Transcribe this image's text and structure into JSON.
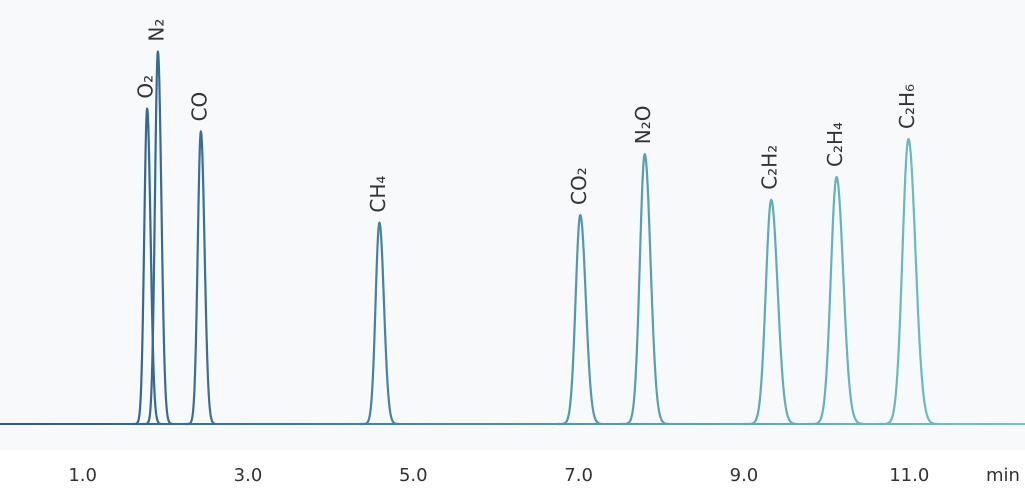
{
  "chart_data": {
    "type": "chromatogram",
    "x_label": "min",
    "xlim": [
      0,
      12.4
    ],
    "ylim": [
      0,
      100
    ],
    "xticks": [
      {
        "value": 1,
        "label": "1.0"
      },
      {
        "value": 3,
        "label": "3.0"
      },
      {
        "value": 5,
        "label": "5.0"
      },
      {
        "value": 7,
        "label": "7.0"
      },
      {
        "value": 9,
        "label": "9.0"
      },
      {
        "value": 11,
        "label": "11.0"
      }
    ],
    "colors": [
      "#2b5a8a",
      "#6fc6cc"
    ],
    "peaks": [
      {
        "label": "O₂",
        "x": 1.78,
        "height": 83
      },
      {
        "label": "N₂",
        "x": 1.91,
        "height": 98
      },
      {
        "label": "CO",
        "x": 2.43,
        "height": 77
      },
      {
        "label": "CH₄",
        "x": 4.59,
        "height": 53
      },
      {
        "label": "CO₂",
        "x": 7.02,
        "height": 55
      },
      {
        "label": "N₂O",
        "x": 7.8,
        "height": 71
      },
      {
        "label": "C₂H₂",
        "x": 9.33,
        "height": 59
      },
      {
        "label": "C₂H₄",
        "x": 10.12,
        "height": 65
      },
      {
        "label": "C₂H₆",
        "x": 10.99,
        "height": 75
      }
    ]
  }
}
